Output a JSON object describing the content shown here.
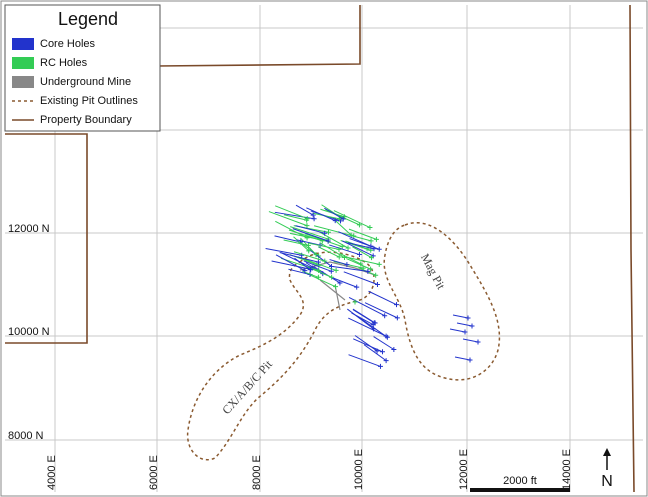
{
  "legend": {
    "title": "Legend",
    "items": [
      "Core Holes",
      "RC Holes",
      "Underground Mine",
      "Existing Pit Outlines",
      "Property Boundary"
    ]
  },
  "grid": {
    "eastings": [
      "4000 E",
      "6000 E",
      "8000 E",
      "10000 E",
      "12000 E",
      "14000 E"
    ],
    "northings": [
      "12000 N",
      "10000 N",
      "8000 N"
    ]
  },
  "pit_labels": {
    "mag": "Mag Pit",
    "cx": "CX/A/B/C Pit"
  },
  "scale_bar": "2000 ft",
  "north": "N"
}
